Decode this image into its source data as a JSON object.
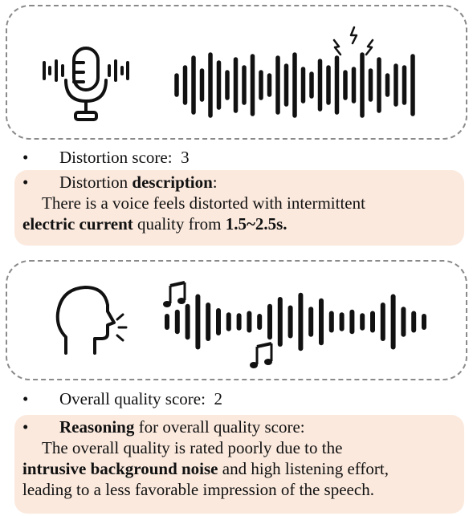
{
  "distortion": {
    "score_label": "Distortion score:",
    "score_value": "3",
    "desc_prefix": "Distortion",
    "desc_bold": "description",
    "desc_suffix": ":",
    "line1": "There is a voice feels distorted with intermittent",
    "line2_bold": "electric current",
    "line2_mid": " quality from ",
    "line2_bold2": "1.5~2.5s."
  },
  "overall": {
    "score_label": "Overall quality score:",
    "score_value": "2",
    "reason_bold": "Reasoning",
    "reason_suffix": " for overall quality score:",
    "line1": "The overall quality is rated poorly due to the",
    "line2_bold": "intrusive background noise",
    "line2_rest": " and high listening effort,",
    "line3": "leading to a less favorable impression of the speech."
  },
  "bullet": "•",
  "icons": {
    "mic": "microphone-icon",
    "waveform": "waveform-icon",
    "spark": "electric-spark-icon",
    "head": "speaking-head-icon",
    "note": "music-note-icon"
  },
  "waveforms": {
    "distortion_levels": [
      0.3,
      0.55,
      0.85,
      0.45,
      0.95,
      0.7,
      0.4,
      0.8,
      0.55,
      0.9,
      0.4,
      0.3,
      0.85,
      0.6,
      0.95,
      0.5,
      0.35,
      0.75,
      0.55,
      0.85,
      0.4,
      0.5,
      0.95,
      0.45,
      0.8,
      0.3,
      0.6,
      0.55,
      0.9
    ],
    "noise_levels": [
      0.2,
      0.35,
      0.55,
      0.9,
      0.6,
      0.4,
      0.25,
      0.22,
      0.3,
      0.2,
      0.55,
      0.8,
      0.5,
      0.95,
      0.45,
      0.75,
      0.3,
      0.25,
      0.35,
      0.22,
      0.3,
      0.6,
      0.9,
      0.45,
      0.3,
      0.2
    ],
    "color": "#111111"
  }
}
